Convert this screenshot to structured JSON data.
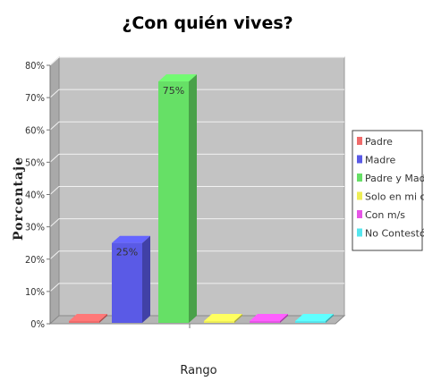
{
  "chart_data": {
    "type": "bar",
    "title": "¿Con quién vives?",
    "xlabel": "Rango",
    "ylabel": "Porcentaje",
    "ylim": [
      0,
      80
    ],
    "yticks": [
      "0%",
      "10%",
      "20%",
      "30%",
      "40%",
      "50%",
      "60%",
      "70%",
      "80%"
    ],
    "grid": true,
    "legend": "right",
    "series": [
      {
        "name": "Padre",
        "value": 0,
        "color": "#f06b6b",
        "label": ""
      },
      {
        "name": "Madre",
        "value": 25,
        "color": "#5a5ae6",
        "label": "25%"
      },
      {
        "name": "Padre y Madre",
        "value": 75,
        "color": "#66e066",
        "label": "75%"
      },
      {
        "name": "Solo en mi casa",
        "value": 0,
        "color": "#eeee55",
        "label": ""
      },
      {
        "name": "Con m/s",
        "value": 0,
        "color": "#e655e6",
        "label": ""
      },
      {
        "name": "No Contestó",
        "value": 0,
        "color": "#55e6ee",
        "label": ""
      }
    ]
  }
}
